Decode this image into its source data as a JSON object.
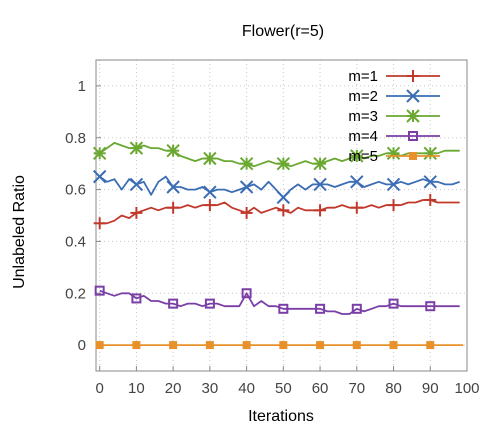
{
  "chart_data": {
    "type": "line",
    "title": "Flower(r=5)",
    "xlabel": "Iterations",
    "ylabel": "Unlabeled Ratio",
    "xlim": [
      -1,
      100
    ],
    "ylim": [
      -0.1,
      1.1
    ],
    "xticks": [
      0,
      10,
      20,
      30,
      40,
      50,
      60,
      70,
      80,
      90,
      100
    ],
    "yticks": [
      0,
      0.2,
      0.4,
      0.6,
      0.8,
      1
    ],
    "ytick_labels": [
      "0",
      "0.2",
      "0.4",
      "0.6",
      "0.8",
      "1"
    ],
    "grid": true,
    "legend_position": "top-right",
    "series": [
      {
        "name": "m=1",
        "color": "#c0392b",
        "marker": "plus",
        "x": [
          0,
          2,
          4,
          6,
          8,
          10,
          12,
          14,
          16,
          18,
          20,
          22,
          24,
          26,
          28,
          30,
          32,
          34,
          36,
          38,
          40,
          42,
          44,
          46,
          48,
          50,
          52,
          54,
          56,
          58,
          60,
          62,
          64,
          66,
          68,
          70,
          72,
          74,
          76,
          78,
          80,
          82,
          84,
          86,
          88,
          90,
          92,
          94,
          96,
          98
        ],
        "y": [
          0.47,
          0.47,
          0.48,
          0.5,
          0.49,
          0.51,
          0.52,
          0.53,
          0.52,
          0.53,
          0.53,
          0.53,
          0.54,
          0.53,
          0.54,
          0.54,
          0.54,
          0.55,
          0.53,
          0.52,
          0.51,
          0.53,
          0.51,
          0.52,
          0.53,
          0.52,
          0.51,
          0.53,
          0.52,
          0.52,
          0.52,
          0.53,
          0.53,
          0.54,
          0.53,
          0.53,
          0.53,
          0.54,
          0.53,
          0.54,
          0.54,
          0.54,
          0.55,
          0.55,
          0.56,
          0.56,
          0.55,
          0.55,
          0.55,
          0.55
        ],
        "marker_x": [
          0,
          10,
          20,
          30,
          40,
          50,
          60,
          70,
          80,
          90
        ]
      },
      {
        "name": "m=2",
        "color": "#3b6db5",
        "marker": "cross",
        "x": [
          0,
          2,
          4,
          6,
          8,
          10,
          12,
          14,
          16,
          18,
          20,
          22,
          24,
          26,
          28,
          30,
          32,
          34,
          36,
          38,
          40,
          42,
          44,
          46,
          48,
          50,
          52,
          54,
          56,
          58,
          60,
          62,
          64,
          66,
          68,
          70,
          72,
          74,
          76,
          78,
          80,
          82,
          84,
          86,
          88,
          90,
          92,
          94,
          96,
          98
        ],
        "y": [
          0.65,
          0.63,
          0.64,
          0.6,
          0.64,
          0.62,
          0.63,
          0.58,
          0.63,
          0.65,
          0.61,
          0.61,
          0.6,
          0.6,
          0.61,
          0.59,
          0.6,
          0.6,
          0.59,
          0.6,
          0.61,
          0.62,
          0.6,
          0.63,
          0.6,
          0.57,
          0.6,
          0.62,
          0.6,
          0.62,
          0.62,
          0.62,
          0.61,
          0.62,
          0.63,
          0.63,
          0.61,
          0.62,
          0.63,
          0.62,
          0.62,
          0.63,
          0.62,
          0.63,
          0.64,
          0.63,
          0.63,
          0.62,
          0.62,
          0.63
        ],
        "marker_x": [
          0,
          10,
          20,
          30,
          40,
          50,
          60,
          70,
          80,
          90
        ]
      },
      {
        "name": "m=3",
        "color": "#6aa832",
        "marker": "star",
        "x": [
          0,
          2,
          4,
          6,
          8,
          10,
          12,
          14,
          16,
          18,
          20,
          22,
          24,
          26,
          28,
          30,
          32,
          34,
          36,
          38,
          40,
          42,
          44,
          46,
          48,
          50,
          52,
          54,
          56,
          58,
          60,
          62,
          64,
          66,
          68,
          70,
          72,
          74,
          76,
          78,
          80,
          82,
          84,
          86,
          88,
          90,
          92,
          94,
          96,
          98
        ],
        "y": [
          0.74,
          0.76,
          0.78,
          0.77,
          0.76,
          0.76,
          0.77,
          0.76,
          0.76,
          0.75,
          0.75,
          0.73,
          0.72,
          0.71,
          0.72,
          0.72,
          0.72,
          0.71,
          0.71,
          0.7,
          0.7,
          0.69,
          0.7,
          0.71,
          0.7,
          0.7,
          0.69,
          0.7,
          0.71,
          0.7,
          0.7,
          0.71,
          0.72,
          0.71,
          0.72,
          0.73,
          0.72,
          0.73,
          0.73,
          0.74,
          0.74,
          0.73,
          0.74,
          0.74,
          0.74,
          0.74,
          0.74,
          0.75,
          0.75,
          0.75
        ],
        "marker_x": [
          0,
          10,
          20,
          30,
          40,
          50,
          60,
          70,
          80,
          90
        ]
      },
      {
        "name": "m=4",
        "color": "#7a3fa6",
        "marker": "square",
        "x": [
          0,
          2,
          4,
          6,
          8,
          10,
          12,
          14,
          16,
          18,
          20,
          22,
          24,
          26,
          28,
          30,
          32,
          34,
          36,
          38,
          40,
          42,
          44,
          46,
          48,
          50,
          52,
          54,
          56,
          58,
          60,
          62,
          64,
          66,
          68,
          70,
          72,
          74,
          76,
          78,
          80,
          82,
          84,
          86,
          88,
          90,
          92,
          94,
          96,
          98
        ],
        "y": [
          0.21,
          0.2,
          0.19,
          0.2,
          0.2,
          0.18,
          0.19,
          0.17,
          0.17,
          0.16,
          0.16,
          0.15,
          0.16,
          0.16,
          0.15,
          0.16,
          0.16,
          0.15,
          0.15,
          0.15,
          0.2,
          0.15,
          0.17,
          0.15,
          0.15,
          0.14,
          0.14,
          0.14,
          0.14,
          0.14,
          0.14,
          0.13,
          0.13,
          0.12,
          0.12,
          0.14,
          0.13,
          0.14,
          0.15,
          0.15,
          0.16,
          0.15,
          0.15,
          0.15,
          0.15,
          0.15,
          0.15,
          0.15,
          0.15,
          0.15
        ],
        "marker_x": [
          0,
          10,
          20,
          30,
          40,
          50,
          60,
          70,
          80,
          90
        ]
      },
      {
        "name": "m=5",
        "color": "#e8902a",
        "marker": "filled-square",
        "x": [
          0,
          10,
          20,
          30,
          40,
          50,
          60,
          70,
          80,
          90,
          99
        ],
        "y": [
          0,
          0,
          0,
          0,
          0,
          0,
          0,
          0,
          0,
          0,
          0
        ],
        "marker_x": [
          0,
          10,
          20,
          30,
          40,
          50,
          60,
          70,
          80,
          90
        ]
      }
    ]
  }
}
